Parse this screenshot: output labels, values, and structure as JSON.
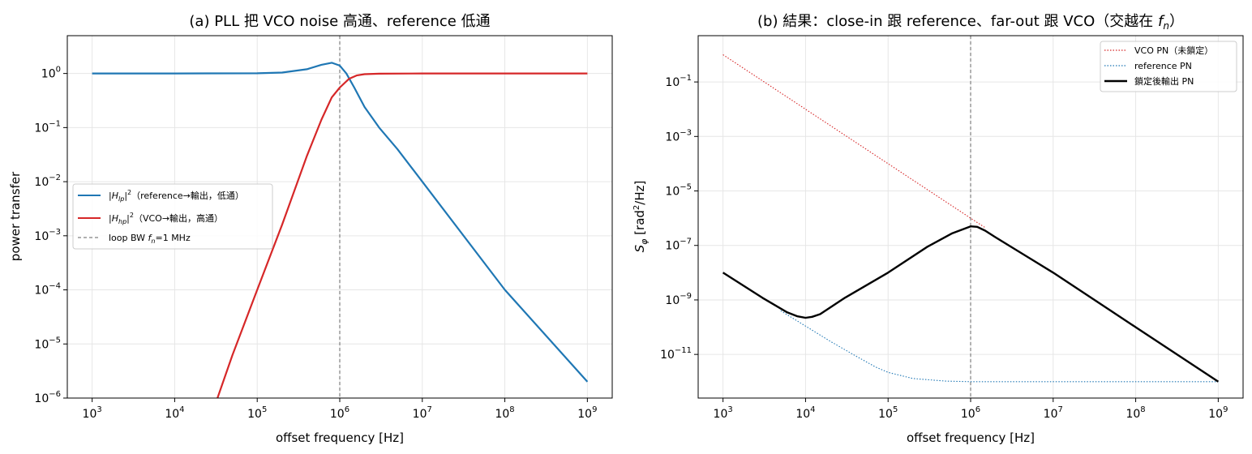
{
  "chart_data": [
    {
      "type": "line",
      "title": "(a) PLL 把 VCO noise 高通、reference 低通",
      "xlabel": "offset frequency [Hz]",
      "ylabel": "power transfer",
      "xscale": "log",
      "yscale": "log",
      "xlim": [
        500,
        2000000000
      ],
      "ylim": [
        1e-06,
        5
      ],
      "xticks": [
        {
          "value": 1000,
          "base": "10",
          "exp": "3"
        },
        {
          "value": 10000,
          "base": "10",
          "exp": "4"
        },
        {
          "value": 100000,
          "base": "10",
          "exp": "5"
        },
        {
          "value": 1000000,
          "base": "10",
          "exp": "6"
        },
        {
          "value": 10000000,
          "base": "10",
          "exp": "7"
        },
        {
          "value": 100000000,
          "base": "10",
          "exp": "8"
        },
        {
          "value": 1000000000,
          "base": "10",
          "exp": "9"
        }
      ],
      "yticks": [
        {
          "value": 1e-06,
          "base": "10",
          "exp": "−6"
        },
        {
          "value": 1e-05,
          "base": "10",
          "exp": "−5"
        },
        {
          "value": 0.0001,
          "base": "10",
          "exp": "−4"
        },
        {
          "value": 0.001,
          "base": "10",
          "exp": "−3"
        },
        {
          "value": 0.01,
          "base": "10",
          "exp": "−2"
        },
        {
          "value": 0.1,
          "base": "10",
          "exp": "−1"
        },
        {
          "value": 1,
          "base": "10",
          "exp": "0"
        }
      ],
      "grid": true,
      "legend_position": "center-left",
      "vline": {
        "x": 1000000,
        "color": "#808080",
        "style": "dashed",
        "label": "loop BW f_n=1 MHz"
      },
      "series": [
        {
          "name": "|H_lp|² (reference→輸出，低通)",
          "color": "#1f77b4",
          "style": "solid",
          "x": [
            1000,
            10000,
            100000,
            200000,
            400000,
            600000,
            800000,
            1000000,
            1200000,
            1500000,
            2000000,
            3000000,
            5000000,
            10000000,
            100000000,
            1000000000
          ],
          "y": [
            1,
            1,
            1.01,
            1.04,
            1.2,
            1.45,
            1.58,
            1.4,
            1.0,
            0.55,
            0.24,
            0.1,
            0.04,
            0.01,
            0.0001,
            2e-06
          ]
        },
        {
          "name": "|H_hp|² (VCO→輸出，高通)",
          "color": "#d62728",
          "style": "solid",
          "x": [
            33000,
            50000,
            100000,
            200000,
            400000,
            600000,
            800000,
            1000000,
            1300000,
            1600000,
            2000000,
            3000000,
            10000000,
            100000000,
            1000000000
          ],
          "y": [
            1e-06,
            6.2e-06,
            0.0001,
            0.0016,
            0.03,
            0.14,
            0.36,
            0.55,
            0.8,
            0.92,
            0.97,
            0.99,
            1,
            1,
            1
          ]
        }
      ]
    },
    {
      "type": "line",
      "title": "(b) 結果：close-in 跟 reference、far-out 跟 VCO（交越在 f_n）",
      "xlabel": "offset frequency [Hz]",
      "ylabel": "S_φ [rad²/Hz]",
      "xscale": "log",
      "yscale": "log",
      "xlim": [
        500,
        2000000000
      ],
      "ylim": [
        2.5e-13,
        5
      ],
      "xticks": [
        {
          "value": 1000,
          "base": "10",
          "exp": "3"
        },
        {
          "value": 10000,
          "base": "10",
          "exp": "4"
        },
        {
          "value": 100000,
          "base": "10",
          "exp": "5"
        },
        {
          "value": 1000000,
          "base": "10",
          "exp": "6"
        },
        {
          "value": 10000000,
          "base": "10",
          "exp": "7"
        },
        {
          "value": 100000000,
          "base": "10",
          "exp": "8"
        },
        {
          "value": 1000000000,
          "base": "10",
          "exp": "9"
        }
      ],
      "yticks": [
        {
          "value": 1e-11,
          "base": "10",
          "exp": "−11"
        },
        {
          "value": 1e-09,
          "base": "10",
          "exp": "−9"
        },
        {
          "value": 1e-07,
          "base": "10",
          "exp": "−7"
        },
        {
          "value": 1e-05,
          "base": "10",
          "exp": "−5"
        },
        {
          "value": 0.001,
          "base": "10",
          "exp": "−3"
        },
        {
          "value": 0.1,
          "base": "10",
          "exp": "−1"
        }
      ],
      "grid": true,
      "legend_position": "top-right",
      "vline": {
        "x": 1000000,
        "color": "#808080",
        "style": "dashed"
      },
      "series": [
        {
          "name": "VCO PN（未鎖定）",
          "color": "#d62728",
          "style": "dotted",
          "x": [
            1000,
            10000,
            100000,
            1000000,
            1500000
          ],
          "y": [
            1,
            0.01,
            0.0001,
            1e-06,
            4.5e-07
          ]
        },
        {
          "name": "reference PN",
          "color": "#1f77b4",
          "style": "dotted",
          "x": [
            5000,
            10000,
            20000,
            40000,
            70000,
            100000,
            200000,
            500000,
            1000000,
            10000000,
            100000000,
            1000000000
          ],
          "y": [
            4e-10,
            1.1e-10,
            3e-11,
            9e-12,
            3.5e-12,
            2.2e-12,
            1.3e-12,
            1.05e-12,
            1e-12,
            1e-12,
            1e-12,
            1e-12
          ]
        },
        {
          "name": "鎖定後輸出 PN",
          "color": "#000000",
          "style": "solid",
          "x": [
            1000,
            3000,
            6000,
            8000,
            10000,
            12000,
            15000,
            30000,
            100000,
            300000,
            600000,
            1000000,
            1200000,
            1500000,
            2000000,
            10000000,
            100000000,
            1000000000
          ],
          "y": [
            1e-08,
            1.2e-09,
            3.5e-10,
            2.5e-10,
            2.2e-10,
            2.4e-10,
            3e-10,
            1.2e-09,
            1e-08,
            9e-08,
            2.8e-07,
            5e-07,
            4.8e-07,
            3.5e-07,
            2e-07,
            1e-08,
            1e-10,
            1e-12
          ]
        }
      ]
    }
  ]
}
